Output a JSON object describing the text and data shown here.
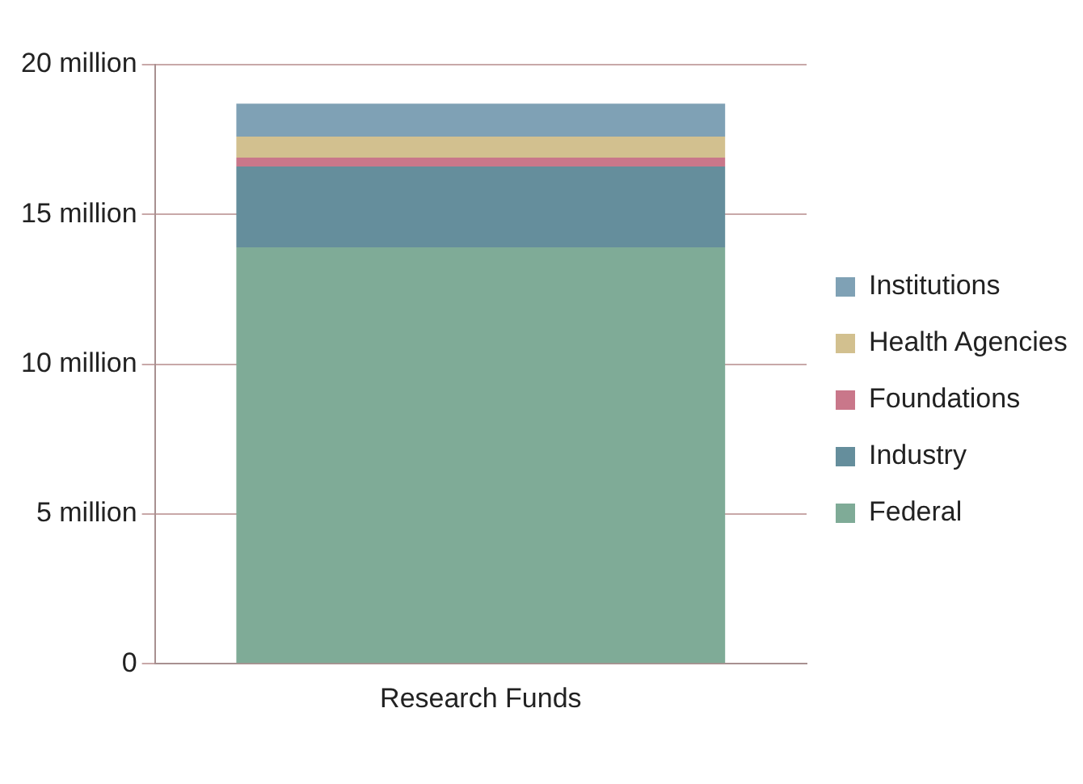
{
  "chart_data": {
    "type": "bar",
    "stacked": true,
    "categories": [
      "Research Funds"
    ],
    "series": [
      {
        "name": "Federal",
        "color": "#7fab97",
        "values": [
          13.9
        ]
      },
      {
        "name": "Industry",
        "color": "#658e9c",
        "values": [
          2.7
        ]
      },
      {
        "name": "Foundations",
        "color": "#c9778a",
        "values": [
          0.3
        ]
      },
      {
        "name": "Health Agencies",
        "color": "#d2c08f",
        "values": [
          0.7
        ]
      },
      {
        "name": "Institutions",
        "color": "#7fa1b5",
        "values": [
          1.1
        ]
      }
    ],
    "ylim": [
      0,
      20
    ],
    "yticks": [
      {
        "value": 0,
        "label": "0"
      },
      {
        "value": 5,
        "label": "5 million"
      },
      {
        "value": 10,
        "label": "10 million"
      },
      {
        "value": 15,
        "label": "15 million"
      },
      {
        "value": 20,
        "label": "20 million"
      }
    ],
    "grid": "y",
    "legend": "right"
  }
}
